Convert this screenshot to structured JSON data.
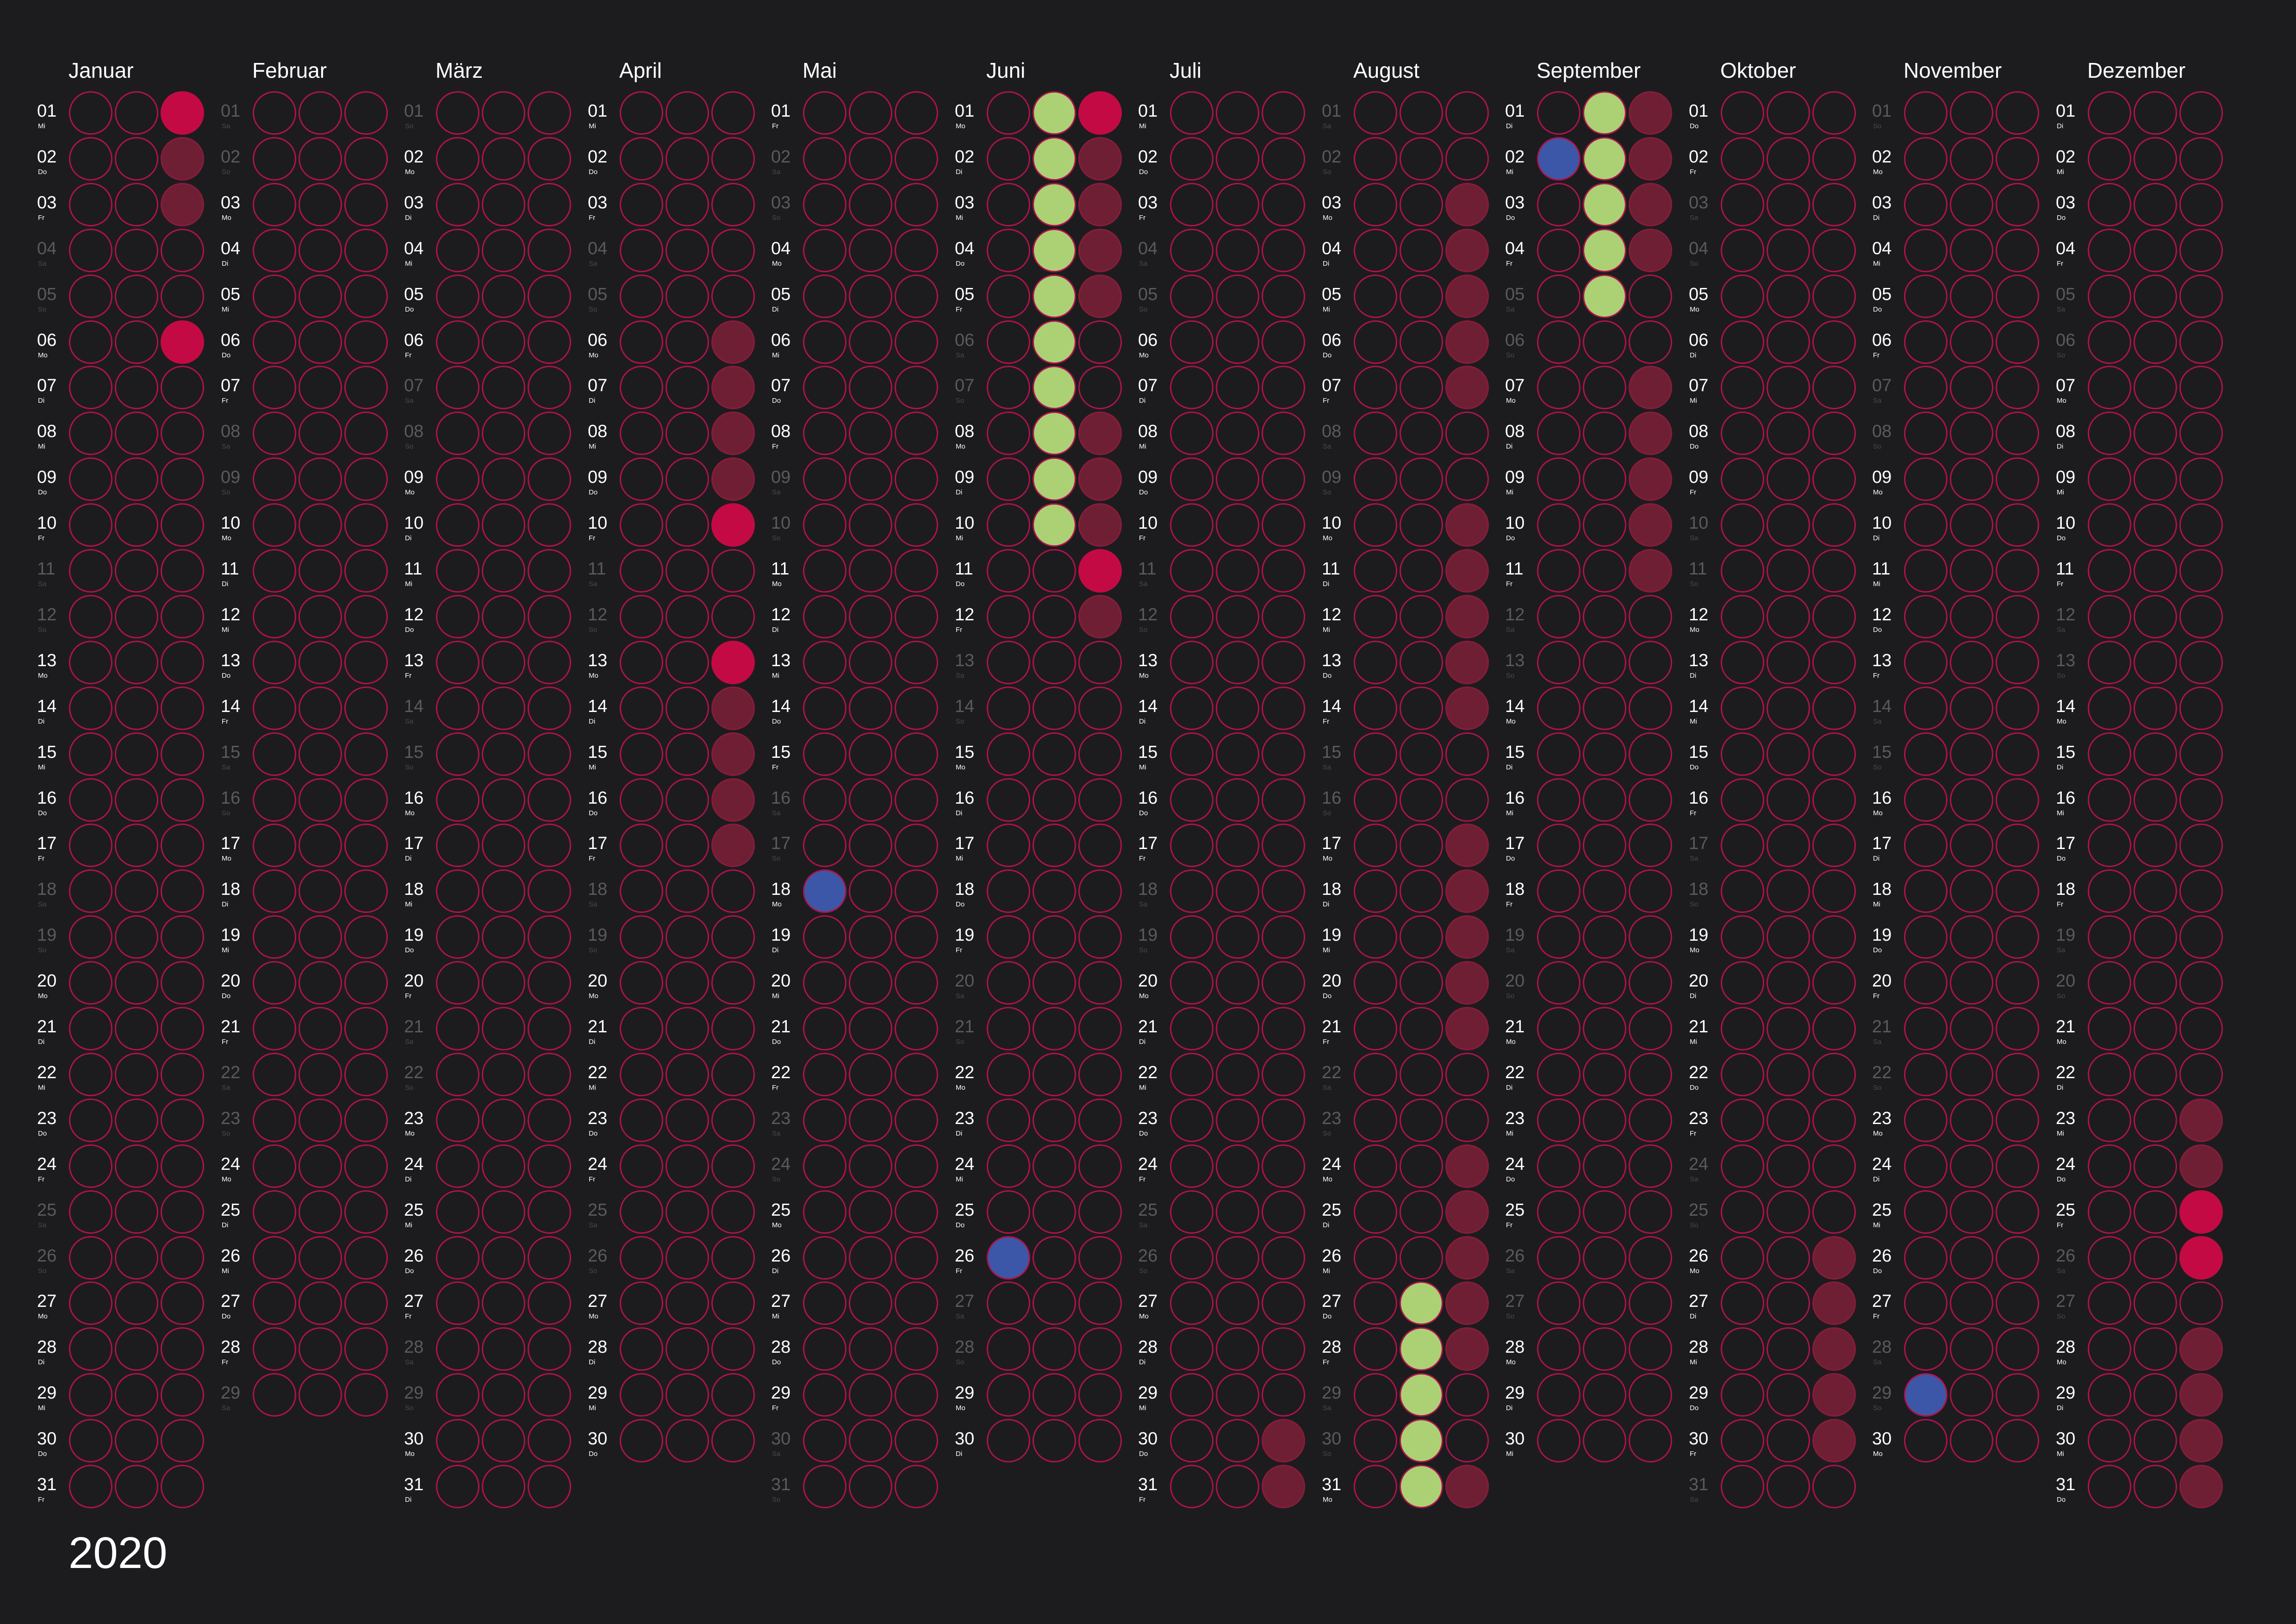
{
  "year": "2020",
  "weekday_abbr": [
    "Mo",
    "Di",
    "Mi",
    "Do",
    "Fr",
    "Sa",
    "So"
  ],
  "legend_colors": {
    "red": "#c40a44",
    "maroon": "#6e1f33",
    "green": "#acd174",
    "blue": "#3d57a8",
    "ring": "#b0124c",
    "background": "#1c1c1e"
  },
  "months": [
    {
      "name": "Januar",
      "days": 31,
      "first_weekday": 2,
      "marks": {
        "1": [
          "",
          "",
          "red"
        ],
        "2": [
          "",
          "",
          "maroon"
        ],
        "3": [
          "",
          "",
          "maroon"
        ],
        "6": [
          "",
          "",
          "red"
        ]
      }
    },
    {
      "name": "Februar",
      "days": 29,
      "first_weekday": 5,
      "marks": {}
    },
    {
      "name": "März",
      "days": 31,
      "first_weekday": 6,
      "marks": {}
    },
    {
      "name": "April",
      "days": 30,
      "first_weekday": 2,
      "marks": {
        "6": [
          "",
          "",
          "maroon"
        ],
        "7": [
          "",
          "",
          "maroon"
        ],
        "8": [
          "",
          "",
          "maroon"
        ],
        "9": [
          "",
          "",
          "maroon"
        ],
        "10": [
          "",
          "",
          "red"
        ],
        "13": [
          "",
          "",
          "red"
        ],
        "14": [
          "",
          "",
          "maroon"
        ],
        "15": [
          "",
          "",
          "maroon"
        ],
        "16": [
          "",
          "",
          "maroon"
        ],
        "17": [
          "",
          "",
          "maroon"
        ]
      }
    },
    {
      "name": "Mai",
      "days": 31,
      "first_weekday": 4,
      "marks": {
        "18": [
          "blue",
          "",
          ""
        ]
      }
    },
    {
      "name": "Juni",
      "days": 30,
      "first_weekday": 0,
      "marks": {
        "1": [
          "",
          "green",
          "red"
        ],
        "2": [
          "",
          "green",
          "maroon"
        ],
        "3": [
          "",
          "green",
          "maroon"
        ],
        "4": [
          "",
          "green",
          "maroon"
        ],
        "5": [
          "",
          "green",
          "maroon"
        ],
        "6": [
          "",
          "green",
          ""
        ],
        "7": [
          "",
          "green",
          ""
        ],
        "8": [
          "",
          "green",
          "maroon"
        ],
        "9": [
          "",
          "green",
          "maroon"
        ],
        "10": [
          "",
          "green",
          "maroon"
        ],
        "11": [
          "",
          "",
          "red"
        ],
        "12": [
          "",
          "",
          "maroon"
        ],
        "26": [
          "blue",
          "",
          ""
        ]
      }
    },
    {
      "name": "Juli",
      "days": 31,
      "first_weekday": 2,
      "marks": {
        "30": [
          "",
          "",
          "maroon"
        ],
        "31": [
          "",
          "",
          "maroon"
        ]
      }
    },
    {
      "name": "August",
      "days": 31,
      "first_weekday": 5,
      "marks": {
        "3": [
          "",
          "",
          "maroon"
        ],
        "4": [
          "",
          "",
          "maroon"
        ],
        "5": [
          "",
          "",
          "maroon"
        ],
        "6": [
          "",
          "",
          "maroon"
        ],
        "7": [
          "",
          "",
          "maroon"
        ],
        "10": [
          "",
          "",
          "maroon"
        ],
        "11": [
          "",
          "",
          "maroon"
        ],
        "12": [
          "",
          "",
          "maroon"
        ],
        "13": [
          "",
          "",
          "maroon"
        ],
        "14": [
          "",
          "",
          "maroon"
        ],
        "17": [
          "",
          "",
          "maroon"
        ],
        "18": [
          "",
          "",
          "maroon"
        ],
        "19": [
          "",
          "",
          "maroon"
        ],
        "20": [
          "",
          "",
          "maroon"
        ],
        "21": [
          "",
          "",
          "maroon"
        ],
        "24": [
          "",
          "",
          "maroon"
        ],
        "25": [
          "",
          "",
          "maroon"
        ],
        "26": [
          "",
          "",
          "maroon"
        ],
        "27": [
          "",
          "green",
          "maroon"
        ],
        "28": [
          "",
          "green",
          "maroon"
        ],
        "29": [
          "",
          "green",
          ""
        ],
        "30": [
          "",
          "green",
          ""
        ],
        "31": [
          "",
          "green",
          "maroon"
        ]
      }
    },
    {
      "name": "September",
      "days": 30,
      "first_weekday": 1,
      "marks": {
        "1": [
          "",
          "green",
          "maroon"
        ],
        "2": [
          "blue",
          "green",
          "maroon"
        ],
        "3": [
          "",
          "green",
          "maroon"
        ],
        "4": [
          "",
          "green",
          "maroon"
        ],
        "5": [
          "",
          "green",
          ""
        ],
        "7": [
          "",
          "",
          "maroon"
        ],
        "8": [
          "",
          "",
          "maroon"
        ],
        "9": [
          "",
          "",
          "maroon"
        ],
        "10": [
          "",
          "",
          "maroon"
        ],
        "11": [
          "",
          "",
          "maroon"
        ]
      }
    },
    {
      "name": "Oktober",
      "days": 31,
      "first_weekday": 3,
      "marks": {
        "26": [
          "",
          "",
          "maroon"
        ],
        "27": [
          "",
          "",
          "maroon"
        ],
        "28": [
          "",
          "",
          "maroon"
        ],
        "29": [
          "",
          "",
          "maroon"
        ],
        "30": [
          "",
          "",
          "maroon"
        ]
      }
    },
    {
      "name": "November",
      "days": 30,
      "first_weekday": 6,
      "marks": {
        "29": [
          "blue",
          "",
          ""
        ]
      }
    },
    {
      "name": "Dezember",
      "days": 31,
      "first_weekday": 1,
      "marks": {
        "23": [
          "",
          "",
          "maroon"
        ],
        "24": [
          "",
          "",
          "maroon"
        ],
        "25": [
          "",
          "",
          "red"
        ],
        "26": [
          "",
          "",
          "red"
        ],
        "28": [
          "",
          "",
          "maroon"
        ],
        "29": [
          "",
          "",
          "maroon"
        ],
        "30": [
          "",
          "",
          "maroon"
        ],
        "31": [
          "",
          "",
          "maroon"
        ]
      }
    }
  ]
}
